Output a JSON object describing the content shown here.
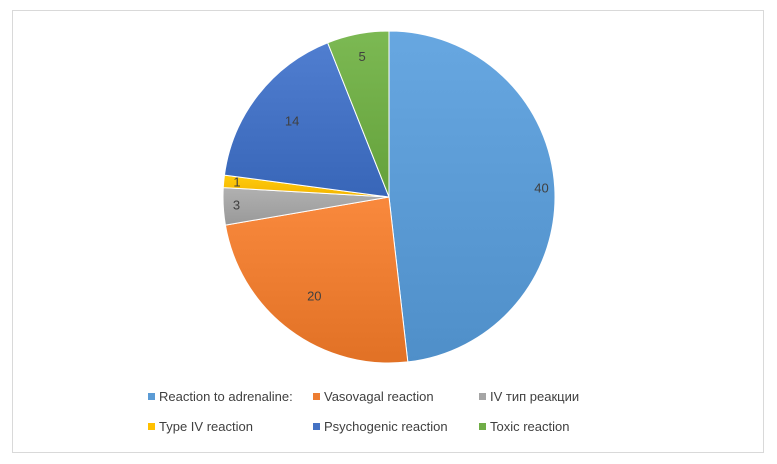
{
  "chart_data": {
    "type": "pie",
    "categories": [
      "Reaction to adrenaline:",
      "Vasovagal reaction",
      "IV тип реакции",
      "Type IV reaction",
      "Psychogenic reaction",
      "Toxic reaction"
    ],
    "values": [
      40,
      20,
      3,
      1,
      14,
      5
    ],
    "colors": [
      "#5B9BD5",
      "#ED7D31",
      "#A5A5A5",
      "#FFC000",
      "#4472C4",
      "#70AD47"
    ],
    "data_labels": true,
    "legend_position": "bottom",
    "start_angle": "top",
    "direction": "clockwise"
  }
}
